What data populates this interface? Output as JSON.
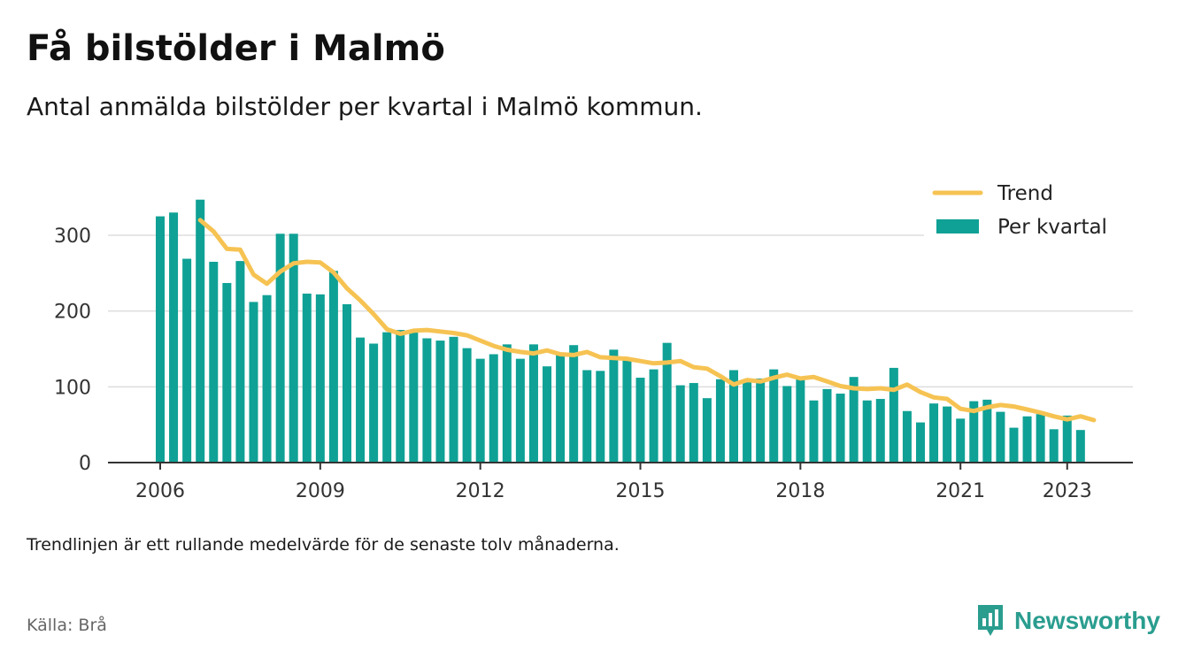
{
  "title": "Få bilstölder i Malmö",
  "subtitle": "Antal anmälda bilstölder per kvartal i Malmö kommun.",
  "note": "Trendlinjen är ett rullande medelvärde för de senaste tolv månaderna.",
  "source": "Källa: Brå",
  "brand": {
    "name": "Newsworthy",
    "icon": "newsworthy-logo-icon",
    "color": "#2a9d8f"
  },
  "colors": {
    "bars": "#0fa195",
    "trend": "#f6c353",
    "grid": "#dddddd",
    "axis": "#333333"
  },
  "chart_data": {
    "type": "bar",
    "title": "",
    "xlabel": "",
    "ylabel": "",
    "ylim": [
      0,
      350
    ],
    "yticks": [
      0,
      100,
      200,
      300
    ],
    "xticks": [
      {
        "label": "2006",
        "year": 2006
      },
      {
        "label": "2009",
        "year": 2009
      },
      {
        "label": "2012",
        "year": 2012
      },
      {
        "label": "2015",
        "year": 2015
      },
      {
        "label": "2018",
        "year": 2018
      },
      {
        "label": "2021",
        "year": 2021
      },
      {
        "label": "2023",
        "year": 2023
      }
    ],
    "grid": true,
    "legend_position": "top-right",
    "x_start": "2006 Q1",
    "quarters": [
      "2006 Q1",
      "2006 Q2",
      "2006 Q3",
      "2006 Q4",
      "2007 Q1",
      "2007 Q2",
      "2007 Q3",
      "2007 Q4",
      "2008 Q1",
      "2008 Q2",
      "2008 Q3",
      "2008 Q4",
      "2009 Q1",
      "2009 Q2",
      "2009 Q3",
      "2009 Q4",
      "2010 Q1",
      "2010 Q2",
      "2010 Q3",
      "2010 Q4",
      "2011 Q1",
      "2011 Q2",
      "2011 Q3",
      "2011 Q4",
      "2012 Q1",
      "2012 Q2",
      "2012 Q3",
      "2012 Q4",
      "2013 Q1",
      "2013 Q2",
      "2013 Q3",
      "2013 Q4",
      "2014 Q1",
      "2014 Q2",
      "2014 Q3",
      "2014 Q4",
      "2015 Q1",
      "2015 Q2",
      "2015 Q3",
      "2015 Q4",
      "2016 Q1",
      "2016 Q2",
      "2016 Q3",
      "2016 Q4",
      "2017 Q1",
      "2017 Q2",
      "2017 Q3",
      "2017 Q4",
      "2018 Q1",
      "2018 Q2",
      "2018 Q3",
      "2018 Q4",
      "2019 Q1",
      "2019 Q2",
      "2019 Q3",
      "2019 Q4",
      "2020 Q1",
      "2020 Q2",
      "2020 Q3",
      "2020 Q4",
      "2021 Q1",
      "2021 Q2",
      "2021 Q3",
      "2021 Q4",
      "2022 Q1",
      "2022 Q2",
      "2022 Q3",
      "2022 Q4",
      "2023 Q1",
      "2023 Q2"
    ],
    "series": [
      {
        "name": "Per kvartal",
        "type": "bar",
        "values": [
          325,
          330,
          269,
          347,
          265,
          237,
          266,
          212,
          221,
          302,
          302,
          223,
          222,
          253,
          209,
          165,
          157,
          172,
          175,
          175,
          164,
          161,
          166,
          151,
          137,
          143,
          156,
          137,
          156,
          127,
          143,
          155,
          122,
          121,
          149,
          135,
          112,
          123,
          158,
          102,
          105,
          85,
          110,
          122,
          106,
          111,
          123,
          101,
          111,
          82,
          97,
          91,
          113,
          82,
          84,
          125,
          68,
          53,
          78,
          74,
          58,
          81,
          83,
          67,
          46,
          61,
          64,
          44,
          62,
          43
        ]
      },
      {
        "name": "Trend",
        "type": "line",
        "start_index": 3,
        "values": [
          320,
          305,
          282,
          281,
          248,
          236,
          252,
          263,
          265,
          264,
          251,
          230,
          214,
          196,
          176,
          170,
          174,
          175,
          173,
          171,
          168,
          161,
          154,
          149,
          146,
          144,
          148,
          143,
          142,
          146,
          139,
          138,
          137,
          134,
          131,
          132,
          134,
          126,
          124,
          114,
          103,
          109,
          107,
          112,
          116,
          111,
          113,
          107,
          101,
          98,
          97,
          98,
          96,
          103,
          93,
          86,
          84,
          71,
          68,
          73,
          76,
          74,
          70,
          66,
          61,
          57,
          61,
          56
        ]
      }
    ]
  }
}
